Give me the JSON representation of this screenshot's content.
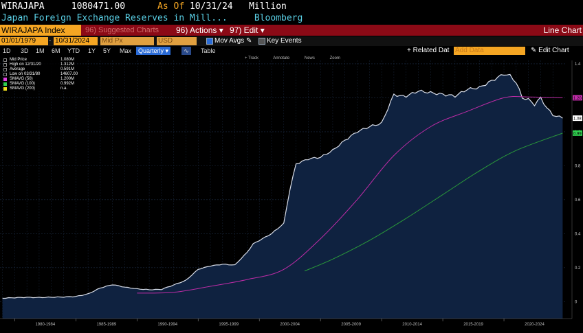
{
  "header": {
    "ticker": "WIRAJAPA",
    "value": "1080471.00",
    "asof_label": "As Of",
    "asof_date": "10/31/24",
    "unit": "Million",
    "description": "Japan Foreign Exchange Reserves in Mill...",
    "source": "Bloomberg"
  },
  "toolbar": {
    "index_name": "WIRAJAPA Index",
    "suggested_label": "96) Suggested Charts",
    "actions_label": "96) Actions",
    "edit_label": "97) Edit",
    "chart_type_label": "Line Chart"
  },
  "settings": {
    "start_date": "01/01/1979",
    "end_date": "10/31/2024",
    "price_field": "Mid Px",
    "currency": "USD",
    "mov_avgs_label": "Mov Avgs",
    "key_events_label": "Key Events"
  },
  "periods": [
    "1D",
    "3D",
    "1M",
    "6M",
    "YTD",
    "1Y",
    "5Y",
    "Max"
  ],
  "frequency": "Quarterly",
  "table_label": "Table",
  "related_label": "Related Dat",
  "add_data_placeholder": "Add Data",
  "edit_chart_label": "Edit Chart",
  "tools": [
    "Track",
    "Annotate",
    "News",
    "Zoom"
  ],
  "legend": [
    {
      "label": "Mid Price",
      "value": "1.080M",
      "color": "#ffffff"
    },
    {
      "label": "High on 12/31/20",
      "value": "1.312M",
      "color": "#ffffff"
    },
    {
      "label": "Average",
      "value": "0.591M",
      "color": "#ffffff"
    },
    {
      "label": "Low on 03/31/80",
      "value": "14607.00",
      "color": "#ffffff"
    },
    {
      "label": "SMAVG (50)",
      "value": "1.200M",
      "color": "#e040e0"
    },
    {
      "label": "SMAVG (100)",
      "value": "0.992M",
      "color": "#30d050"
    },
    {
      "label": "SMAVG (200)",
      "value": "n.a.",
      "color": "#f0e020"
    }
  ],
  "chart_data": {
    "type": "area",
    "x_ticks": [
      "1980-1984",
      "1985-1989",
      "1990-1994",
      "1995-1999",
      "2000-2004",
      "2005-2009",
      "2010-2014",
      "2015-2019",
      "2020-2024"
    ],
    "y_ticks": [
      "0",
      "0.2",
      "0.4",
      "0.6",
      "0.8",
      "1.0",
      "1.2",
      "1.4"
    ],
    "ylim": [
      -0.1,
      1.42
    ],
    "y_unit": "M",
    "colors": {
      "area": "#0f2240",
      "line": "#d8dde8",
      "sma50": "#c02ca8",
      "sma100": "#2a9a3a"
    },
    "series": [
      {
        "name": "Mid Price",
        "x": [
          1979.0,
          1980,
          1981,
          1982,
          1983,
          1984,
          1985,
          1986,
          1987,
          1987.5,
          1988,
          1989,
          1990,
          1991,
          1992,
          1993,
          1994,
          1995,
          1996,
          1997,
          1998,
          1999,
          1999.5,
          2000,
          2001,
          2002,
          2002.5,
          2003,
          2004,
          2005,
          2006,
          2007,
          2008,
          2009,
          2010,
          2011,
          2011.5,
          2012,
          2013,
          2014,
          2015,
          2016,
          2017,
          2018,
          2019,
          2020,
          2020.5,
          2021,
          2021.5,
          2022,
          2022.5,
          2023,
          2023.5,
          2024,
          2024.8
        ],
        "values": [
          0.02,
          0.023,
          0.025,
          0.024,
          0.026,
          0.027,
          0.03,
          0.045,
          0.08,
          0.09,
          0.1,
          0.085,
          0.075,
          0.07,
          0.072,
          0.098,
          0.125,
          0.19,
          0.21,
          0.22,
          0.215,
          0.29,
          0.34,
          0.36,
          0.4,
          0.46,
          0.66,
          0.81,
          0.84,
          0.85,
          0.89,
          0.95,
          1.0,
          1.03,
          1.05,
          1.22,
          1.21,
          1.21,
          1.24,
          1.23,
          1.22,
          1.21,
          1.25,
          1.26,
          1.3,
          1.34,
          1.33,
          1.29,
          1.2,
          1.19,
          1.16,
          1.2,
          1.14,
          1.1,
          1.08
        ]
      },
      {
        "name": "SMAVG (50)",
        "x": [
          1990,
          1993,
          1996,
          1999,
          2002,
          2005,
          2008,
          2011,
          2014,
          2017,
          2020,
          2022,
          2024.8
        ],
        "values": [
          0.05,
          0.055,
          0.09,
          0.13,
          0.19,
          0.37,
          0.6,
          0.86,
          1.03,
          1.12,
          1.2,
          1.205,
          1.2
        ]
      },
      {
        "name": "SMAVG (100)",
        "x": [
          2003.7,
          2006,
          2009,
          2012,
          2015,
          2018,
          2021,
          2024.8
        ],
        "values": [
          0.18,
          0.25,
          0.36,
          0.49,
          0.63,
          0.77,
          0.89,
          0.992
        ]
      }
    ],
    "right_labels": [
      {
        "value": 1.2,
        "text": "1.20",
        "color": "#c02ca8"
      },
      {
        "value": 1.08,
        "text": "1.08",
        "color": "#ffffff"
      },
      {
        "value": 0.992,
        "text": "0.99",
        "color": "#30d050"
      }
    ]
  }
}
